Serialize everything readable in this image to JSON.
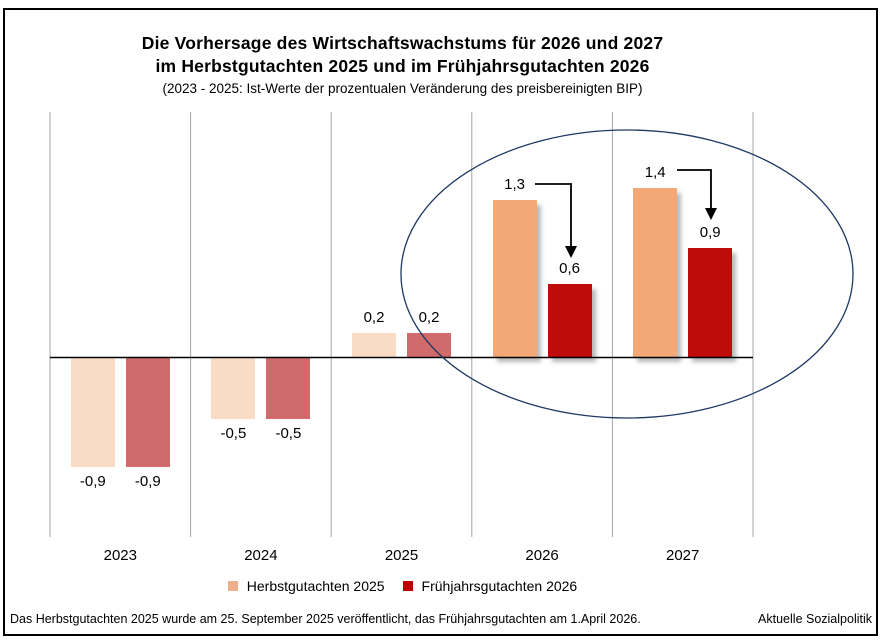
{
  "title": {
    "line1": "Die Vorhersage des Wirtschaftswachstums für 2026 und 2027",
    "line2": "im Herbstgutachten 2025 und im Frühjahrsgutachten 2026",
    "subtitle": "(2023 - 2025: Ist-Werte der prozentualen Veränderung des preisbereinigten BIP)"
  },
  "legend": [
    {
      "label": "Herbstgutachten 2025",
      "color": "#EDAF8C"
    },
    {
      "label": "Frühjahrsgutachten 2026",
      "color": "#C00000"
    }
  ],
  "footer": {
    "note": "Das Herbstgutachten 2025 wurde am 25. September 2025 veröffentlicht, das Frühjahrsgutachten am 1.April 2026.",
    "source": "Aktuelle Sozialpolitik"
  },
  "chart_data": {
    "type": "bar",
    "title": "Die Vorhersage des Wirtschaftswachstums für 2026 und 2027 im Herbstgutachten 2025 und im Frühjahrsgutachten 2026",
    "subtitle": "(2023 - 2025: Ist-Werte der prozentualen Veränderung des preisbereinigten BIP)",
    "categories": [
      "2023",
      "2024",
      "2025",
      "2026",
      "2027"
    ],
    "series": [
      {
        "name": "Herbstgutachten 2025",
        "values": [
          -0.9,
          -0.5,
          0.2,
          1.3,
          1.4
        ],
        "labels": [
          "-0,9",
          "-0,5",
          "0,2",
          "1,3",
          "1,4"
        ]
      },
      {
        "name": "Frühjahrsgutachten 2026",
        "values": [
          -0.9,
          -0.5,
          0.2,
          0.6,
          0.9
        ],
        "labels": [
          "-0,9",
          "-0,5",
          "0,2",
          "0,6",
          "0,9"
        ]
      }
    ],
    "forecast_categories": [
      "2026",
      "2027"
    ],
    "colors": {
      "actual_series1": "#FADCC4",
      "actual_series2": "#D16A6A",
      "forecast_series1": "#F2A877",
      "forecast_series2": "#C00B0B",
      "gridline": "#A6A6A6",
      "zero_line": "#000000",
      "highlight_ellipse": "#1F3864"
    },
    "unit": "%",
    "ylim": [
      -1.9,
      1.9
    ],
    "grid": "vertical-panel-lines-only",
    "legend_position": "bottom",
    "annotations": {
      "highlight": "ellipse around the 2026 and 2027 forecast bars",
      "arrows": [
        {
          "year": "2026",
          "from_label": "1,3",
          "to_label": "0,6"
        },
        {
          "year": "2027",
          "from_label": "1,4",
          "to_label": "0,9"
        }
      ]
    }
  }
}
